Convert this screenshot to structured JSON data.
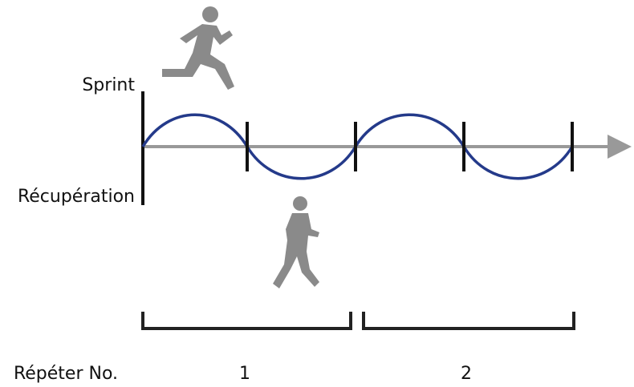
{
  "labels": {
    "sprint": "Sprint",
    "recovery": "Récupération"
  },
  "repeat": {
    "label": "Répéter No.",
    "numbers": [
      "1",
      "2"
    ]
  }
}
